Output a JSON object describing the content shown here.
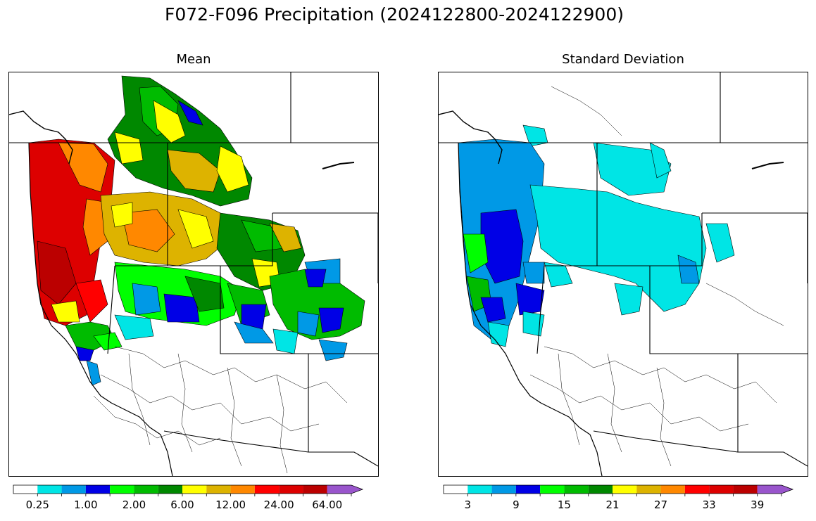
{
  "figure": {
    "title": "F072-F096 Precipitation (2024122800-2024122900)"
  },
  "panels": [
    {
      "title": "Mean",
      "colorbar": {
        "colors": [
          "#ffffff",
          "#00e5e5",
          "#0099e6",
          "#0000e6",
          "#00ff00",
          "#00bb00",
          "#008800",
          "#ffff00",
          "#ddb300",
          "#ff8800",
          "#ff0000",
          "#dd0000",
          "#bb0000",
          "#ff00ff",
          "#9955cc"
        ],
        "tick_labels": [
          "0.25",
          "1.00",
          "2.00",
          "6.00",
          "12.00",
          "24.00",
          "64.00"
        ],
        "extend": "max"
      }
    },
    {
      "title": "Standard Deviation",
      "colorbar": {
        "colors": [
          "#ffffff",
          "#00e5e5",
          "#0099e6",
          "#0000e6",
          "#00ff00",
          "#00bb00",
          "#008800",
          "#ffff00",
          "#ddb300",
          "#ff8800",
          "#ff0000",
          "#dd0000",
          "#bb0000",
          "#ff00ff",
          "#9955cc"
        ],
        "tick_labels": [
          "3",
          "9",
          "15",
          "21",
          "27",
          "33",
          "39"
        ],
        "extend": "max"
      }
    }
  ]
}
